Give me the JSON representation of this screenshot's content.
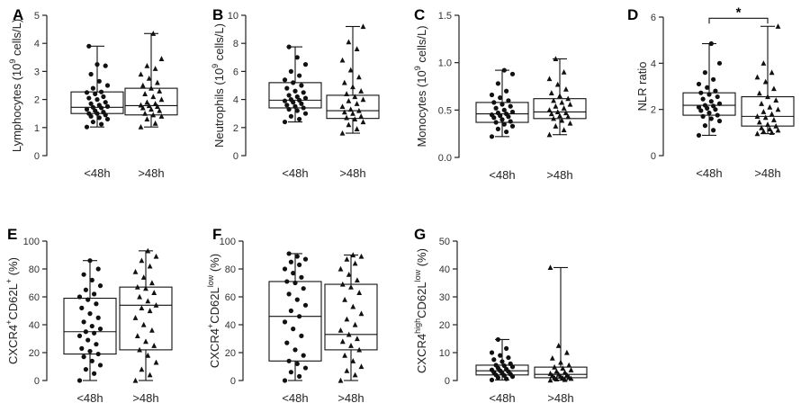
{
  "chart_data": [
    {
      "type": "box",
      "panel_letter": "A",
      "ylabel": "Lymphocytes (10^9 cells/L)",
      "ylabel_parts": [
        {
          "t": "Lymphocytes (10"
        },
        {
          "t": "9",
          "sup": true
        },
        {
          "t": " cells/L)"
        }
      ],
      "yticks": [
        "0",
        "1",
        "2",
        "3",
        "4",
        "5"
      ],
      "ylim": [
        0,
        5
      ],
      "categories": [
        "<48h",
        ">48h"
      ],
      "boxes": [
        {
          "min": 1.02,
          "q1": 1.5,
          "median": 1.72,
          "q3": 2.27,
          "max": 3.9
        },
        {
          "min": 1.02,
          "q1": 1.45,
          "median": 1.78,
          "q3": 2.4,
          "max": 4.35
        }
      ],
      "points": [
        [
          1.02,
          1.12,
          1.2,
          1.3,
          1.35,
          1.4,
          1.45,
          1.5,
          1.5,
          1.55,
          1.6,
          1.65,
          1.7,
          1.72,
          1.75,
          1.8,
          1.85,
          1.9,
          2.0,
          2.05,
          2.1,
          2.2,
          2.25,
          2.27,
          2.4,
          2.5,
          2.65,
          2.9,
          3.2,
          3.25,
          3.9
        ],
        [
          1.02,
          1.15,
          1.3,
          1.4,
          1.45,
          1.5,
          1.6,
          1.65,
          1.7,
          1.75,
          1.78,
          1.8,
          1.85,
          1.9,
          2.0,
          2.1,
          2.2,
          2.3,
          2.4,
          2.5,
          2.6,
          2.75,
          2.9,
          3.1,
          3.2,
          3.45,
          4.35
        ]
      ],
      "significance": null
    },
    {
      "type": "box",
      "panel_letter": "B",
      "ylabel": "Neutrophils (10^9 cells/L)",
      "ylabel_parts": [
        {
          "t": "Neutrophils (10"
        },
        {
          "t": "9",
          "sup": true
        },
        {
          "t": " cells/L)"
        }
      ],
      "yticks": [
        "0",
        "2",
        "4",
        "6",
        "8",
        "10"
      ],
      "ylim": [
        0,
        10
      ],
      "categories": [
        "<48h",
        ">48h"
      ],
      "boxes": [
        {
          "min": 2.4,
          "q1": 3.4,
          "median": 3.95,
          "q3": 5.2,
          "max": 7.75
        },
        {
          "min": 1.6,
          "q1": 2.65,
          "median": 3.2,
          "q3": 4.3,
          "max": 9.2
        }
      ],
      "points": [
        [
          2.4,
          2.6,
          2.8,
          3.0,
          3.2,
          3.3,
          3.4,
          3.5,
          3.6,
          3.7,
          3.8,
          3.9,
          3.95,
          4.0,
          4.1,
          4.2,
          4.3,
          4.5,
          4.6,
          4.8,
          5.0,
          5.2,
          5.4,
          5.7,
          6.0,
          6.5,
          7.0,
          7.75
        ],
        [
          1.6,
          1.9,
          2.2,
          2.4,
          2.6,
          2.7,
          2.8,
          3.0,
          3.1,
          3.2,
          3.3,
          3.5,
          3.7,
          3.9,
          4.0,
          4.2,
          4.4,
          4.6,
          4.9,
          5.2,
          5.6,
          6.1,
          6.8,
          7.6,
          8.1,
          9.2
        ]
      ],
      "significance": null
    },
    {
      "type": "box",
      "panel_letter": "C",
      "ylabel": "Monocytes (10^9 cells/L)",
      "ylabel_parts": [
        {
          "t": "Monocytes (10"
        },
        {
          "t": "9",
          "sup": true
        },
        {
          "t": " cells/L)"
        }
      ],
      "yticks": [
        "0.0",
        "0.5",
        "1.0",
        "1.5"
      ],
      "ylim": [
        0,
        1.5
      ],
      "categories": [
        "<48h",
        ">48h"
      ],
      "boxes": [
        {
          "min": 0.22,
          "q1": 0.37,
          "median": 0.46,
          "q3": 0.58,
          "max": 0.92
        },
        {
          "min": 0.24,
          "q1": 0.41,
          "median": 0.48,
          "q3": 0.62,
          "max": 1.04
        }
      ],
      "points": [
        [
          0.22,
          0.27,
          0.3,
          0.33,
          0.35,
          0.37,
          0.38,
          0.4,
          0.42,
          0.43,
          0.44,
          0.45,
          0.46,
          0.47,
          0.48,
          0.5,
          0.52,
          0.54,
          0.56,
          0.58,
          0.6,
          0.63,
          0.66,
          0.7,
          0.78,
          0.88,
          0.92
        ],
        [
          0.24,
          0.29,
          0.33,
          0.36,
          0.39,
          0.41,
          0.43,
          0.44,
          0.46,
          0.47,
          0.48,
          0.5,
          0.52,
          0.54,
          0.56,
          0.58,
          0.6,
          0.62,
          0.65,
          0.68,
          0.72,
          0.77,
          0.83,
          0.9,
          1.04
        ]
      ],
      "significance": null
    },
    {
      "type": "box",
      "panel_letter": "D",
      "ylabel": "NLR ratio",
      "ylabel_parts": [
        {
          "t": "NLR ratio"
        }
      ],
      "yticks": [
        "0",
        "2",
        "4",
        "6"
      ],
      "ylim": [
        0,
        6
      ],
      "categories": [
        "<48h",
        ">48h"
      ],
      "boxes": [
        {
          "min": 0.88,
          "q1": 1.75,
          "median": 2.18,
          "q3": 2.72,
          "max": 4.85
        },
        {
          "min": 0.95,
          "q1": 1.28,
          "median": 1.7,
          "q3": 2.55,
          "max": 5.6
        }
      ],
      "points": [
        [
          0.88,
          1.1,
          1.3,
          1.5,
          1.6,
          1.7,
          1.75,
          1.85,
          1.95,
          2.0,
          2.05,
          2.1,
          2.15,
          2.18,
          2.25,
          2.35,
          2.45,
          2.55,
          2.65,
          2.72,
          2.8,
          2.95,
          3.1,
          3.3,
          3.6,
          4.0,
          4.85
        ],
        [
          0.95,
          1.0,
          1.05,
          1.1,
          1.15,
          1.2,
          1.28,
          1.35,
          1.45,
          1.55,
          1.65,
          1.7,
          1.8,
          1.9,
          2.0,
          2.1,
          2.25,
          2.4,
          2.55,
          2.7,
          2.9,
          3.2,
          3.4,
          3.6,
          4.0,
          5.6
        ]
      ],
      "significance": {
        "text": "*",
        "y": 5.95
      }
    },
    {
      "type": "box",
      "panel_letter": "E",
      "ylabel": "CXCR4+CD62L+ (%)",
      "ylabel_parts": [
        {
          "t": "CXCR4"
        },
        {
          "t": "+",
          "sup": true
        },
        {
          "t": "CD62L"
        },
        {
          "t": "+",
          "sup": true
        },
        {
          "t": " (%)"
        }
      ],
      "yticks": [
        "0",
        "20",
        "40",
        "60",
        "80",
        "100"
      ],
      "ylim": [
        0,
        100
      ],
      "categories": [
        "<48h",
        ">48h"
      ],
      "boxes": [
        {
          "min": 0,
          "q1": 19,
          "median": 35,
          "q3": 59,
          "max": 86
        },
        {
          "min": 0,
          "q1": 22,
          "median": 54,
          "q3": 67,
          "max": 93
        }
      ],
      "points": [
        [
          0,
          5,
          8,
          11,
          14,
          17,
          19,
          21,
          23,
          26,
          29,
          32,
          34,
          35,
          37,
          39,
          42,
          45,
          48,
          52,
          55,
          58,
          60,
          62,
          65,
          68,
          72,
          76,
          80,
          86
        ],
        [
          0,
          4,
          8,
          13,
          18,
          22,
          25,
          28,
          32,
          36,
          40,
          45,
          50,
          52,
          54,
          57,
          60,
          63,
          66,
          67,
          70,
          74,
          78,
          82,
          86,
          89,
          93
        ]
      ],
      "significance": null
    },
    {
      "type": "box",
      "panel_letter": "F",
      "ylabel": "CXCR4+CD62Llow (%)",
      "ylabel_parts": [
        {
          "t": "CXCR4"
        },
        {
          "t": "+",
          "sup": true
        },
        {
          "t": "CD62L"
        },
        {
          "t": "low",
          "sup": true
        },
        {
          "t": " (%)"
        }
      ],
      "yticks": [
        "0",
        "20",
        "40",
        "60",
        "80",
        "100"
      ],
      "ylim": [
        0,
        100
      ],
      "categories": [
        "<48h",
        ">48h"
      ],
      "boxes": [
        {
          "min": 0,
          "q1": 14,
          "median": 46,
          "q3": 71,
          "max": 91
        },
        {
          "min": 0,
          "q1": 22,
          "median": 33,
          "q3": 69,
          "max": 90
        }
      ],
      "points": [
        [
          0,
          3,
          6,
          9,
          12,
          14,
          18,
          22,
          27,
          32,
          37,
          42,
          46,
          50,
          54,
          58,
          62,
          66,
          70,
          71,
          74,
          77,
          80,
          83,
          85,
          87,
          89,
          91
        ],
        [
          0,
          4,
          7,
          10,
          14,
          18,
          22,
          25,
          28,
          30,
          33,
          36,
          40,
          44,
          48,
          53,
          58,
          63,
          67,
          69,
          72,
          76,
          80,
          84,
          87,
          89,
          90
        ]
      ],
      "significance": null
    },
    {
      "type": "box",
      "panel_letter": "G",
      "ylabel": "CXCR4highCD62Llow (%)",
      "ylabel_parts": [
        {
          "t": "CXCR4"
        },
        {
          "t": "high",
          "sup": true
        },
        {
          "t": "CD62L"
        },
        {
          "t": "low",
          "sup": true
        },
        {
          "t": " (%)"
        }
      ],
      "yticks": [
        "0",
        "10",
        "20",
        "30",
        "40",
        "50"
      ],
      "ylim": [
        0,
        50
      ],
      "categories": [
        "<48h",
        ">48h"
      ],
      "boxes": [
        {
          "min": 0.2,
          "q1": 2,
          "median": 3.5,
          "q3": 5.5,
          "max": 14.7
        },
        {
          "min": 0.1,
          "q1": 1,
          "median": 2.2,
          "q3": 4.8,
          "max": 40.5
        }
      ],
      "points": [
        [
          0.2,
          0.6,
          1.0,
          1.4,
          1.8,
          2.0,
          2.3,
          2.6,
          2.9,
          3.2,
          3.5,
          3.8,
          4.1,
          4.5,
          4.9,
          5.3,
          5.5,
          6.0,
          6.8,
          7.5,
          8.2,
          9.0,
          10.0,
          11.5,
          14.7
        ],
        [
          0.1,
          0.3,
          0.5,
          0.7,
          0.9,
          1.0,
          1.2,
          1.5,
          1.8,
          2.0,
          2.2,
          2.5,
          2.9,
          3.3,
          3.8,
          4.4,
          4.8,
          5.5,
          6.5,
          8.0,
          10.0,
          12.5,
          40.5
        ]
      ],
      "significance": null
    }
  ]
}
